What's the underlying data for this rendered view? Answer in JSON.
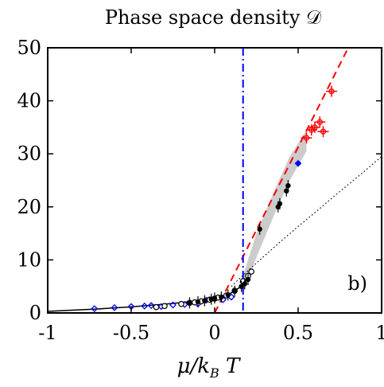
{
  "chart_data": {
    "type": "scatter",
    "title": "Phase space density 𝒟",
    "xlabel": "μ/k_B T",
    "xlabel_parts": {
      "mu": "μ/",
      "k": "k",
      "sub": "B",
      "T": " T"
    },
    "ylabel": "",
    "panel_label": "b)",
    "xlim": [
      -1,
      1
    ],
    "ylim": [
      0,
      50
    ],
    "x_ticks": [
      -1,
      -0.5,
      0,
      0.5,
      1
    ],
    "x_tick_labels": [
      "-1",
      "-0.5",
      "0",
      "0.5",
      "1"
    ],
    "y_ticks": [
      0,
      10,
      20,
      30,
      40,
      50
    ],
    "y_tick_labels": [
      "0",
      "10",
      "20",
      "30",
      "40",
      "50"
    ],
    "grid": false,
    "vertical_line_x": 0.17,
    "colors": {
      "red": "#ff0000",
      "blue": "#0000ff",
      "black": "#000000",
      "band": "#bbbbbb"
    },
    "series": [
      {
        "style": "black-solid-line",
        "x": [
          -1,
          -0.9,
          -0.8,
          -0.7,
          -0.6,
          -0.5,
          -0.4,
          -0.3,
          -0.2,
          -0.1,
          0.0,
          0.05,
          0.1,
          0.15
        ],
        "y": [
          0.3,
          0.45,
          0.6,
          0.75,
          0.95,
          1.15,
          1.4,
          1.65,
          1.95,
          2.3,
          2.8,
          3.2,
          3.8,
          4.8
        ]
      },
      {
        "style": "black-dotted-line",
        "x": [
          0.1,
          0.2,
          0.3,
          0.4,
          0.5,
          0.6,
          0.7,
          0.8,
          0.9,
          1.0
        ],
        "y": [
          5.0,
          8.0,
          10.8,
          13.6,
          16.3,
          18.9,
          21.6,
          24.2,
          26.8,
          29.5
        ]
      },
      {
        "style": "red-dashed-line",
        "x": [
          0.0,
          0.2,
          0.4,
          0.6,
          0.8,
          0.88
        ],
        "y": [
          0.0,
          12.5,
          25.0,
          37.5,
          50.0,
          55.0
        ]
      },
      {
        "style": "gray-band",
        "x": [
          0.17,
          0.25,
          0.35,
          0.45,
          0.55
        ],
        "y_low": [
          3.5,
          10.5,
          18.0,
          25.0,
          30.5
        ],
        "y_high": [
          7.0,
          15.0,
          22.5,
          29.5,
          34.5
        ]
      },
      {
        "style": "blue-diamonds",
        "x": [
          -0.72,
          -0.6,
          -0.5,
          -0.42,
          -0.38,
          -0.32,
          -0.25,
          -0.18,
          -0.1,
          -0.05,
          0.05,
          0.1,
          0.17,
          0.5
        ],
        "y": [
          0.8,
          1.0,
          1.2,
          1.3,
          1.4,
          1.2,
          1.5,
          1.6,
          1.7,
          2.4,
          2.5,
          3.0,
          5.8,
          28.2
        ]
      },
      {
        "style": "black-open-circles",
        "x": [
          -0.35,
          -0.3,
          -0.2,
          -0.15,
          -0.12,
          -0.08,
          -0.03,
          0.0,
          0.02,
          0.07,
          0.12,
          0.17,
          0.2,
          0.22
        ],
        "y": [
          1.1,
          1.3,
          1.7,
          1.9,
          2.0,
          2.2,
          2.5,
          2.7,
          2.9,
          3.3,
          4.2,
          6.0,
          7.0,
          7.8
        ]
      },
      {
        "style": "black-filled-points",
        "x": [
          -0.15,
          -0.1,
          -0.06,
          -0.02,
          0.0,
          0.04,
          0.08,
          0.12,
          0.16,
          0.18,
          0.2,
          0.27,
          0.38,
          0.39,
          0.43,
          0.44
        ],
        "y": [
          1.9,
          2.1,
          2.3,
          2.6,
          2.8,
          3.0,
          3.4,
          4.1,
          5.0,
          5.5,
          6.3,
          15.8,
          20.0,
          20.6,
          23.0,
          24.0
        ]
      },
      {
        "style": "red-crosses",
        "x": [
          0.55,
          0.58,
          0.6,
          0.63,
          0.65,
          0.7
        ],
        "y": [
          33.0,
          34.5,
          35.0,
          36.0,
          34.2,
          41.8
        ]
      }
    ]
  }
}
